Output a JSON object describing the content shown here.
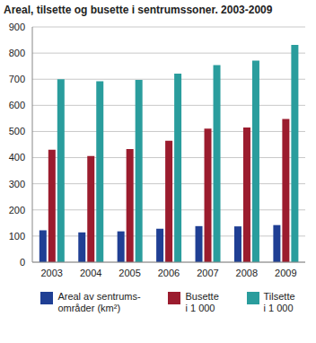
{
  "chart_data": {
    "type": "bar",
    "title": "Areal, tilsette og busette i sentrumssoner. 2003-2009",
    "categories": [
      "2003",
      "2004",
      "2005",
      "2006",
      "2007",
      "2008",
      "2009"
    ],
    "series": [
      {
        "name": "Areal av sentrums-\nområder (km²)",
        "color": "#1f3f94",
        "values": [
          122,
          114,
          118,
          128,
          138,
          137,
          142
        ]
      },
      {
        "name": "Busette\ni 1 000",
        "color": "#9b1c2e",
        "values": [
          430,
          406,
          433,
          465,
          511,
          515,
          548
        ]
      },
      {
        "name": "Tilsette\ni 1 000",
        "color": "#2a9d9d",
        "values": [
          700,
          692,
          697,
          721,
          754,
          771,
          831
        ]
      }
    ],
    "ylim": [
      0,
      900
    ],
    "yticks": [
      0,
      100,
      200,
      300,
      400,
      500,
      600,
      700,
      800,
      900
    ],
    "grid": true,
    "legend": "bottom"
  }
}
